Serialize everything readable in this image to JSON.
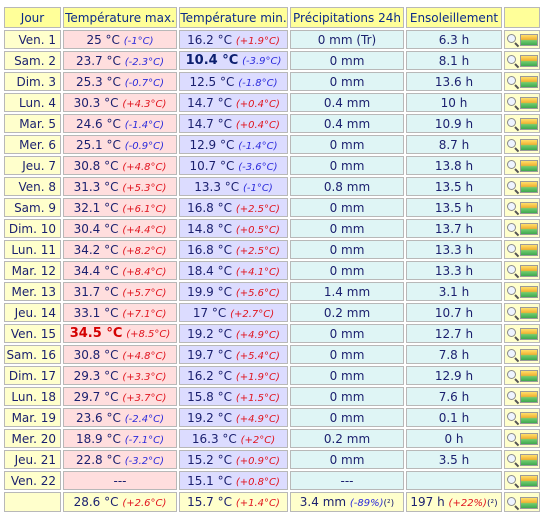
{
  "headers": {
    "jour": "Jour",
    "tmax": "Température max.",
    "tmin": "Température min.",
    "precip": "Précipitations 24h",
    "sun": "Ensoleillement"
  },
  "rows": [
    {
      "day": "Ven. 1",
      "tmax": "25 °C",
      "tmax_anom": "(-1°C)",
      "tmin": "16.2 °C",
      "tmin_anom": "(+1.9°C)",
      "precip": "0 mm (Tr)",
      "sun": "6.3 h"
    },
    {
      "day": "Sam. 2",
      "tmax": "23.7 °C",
      "tmax_anom": "(-2.3°C)",
      "tmin": "10.4 °C",
      "tmin_anom": "(-3.9°C)",
      "precip": "0 mm",
      "sun": "8.1 h"
    },
    {
      "day": "Dim. 3",
      "tmax": "25.3 °C",
      "tmax_anom": "(-0.7°C)",
      "tmin": "12.5 °C",
      "tmin_anom": "(-1.8°C)",
      "precip": "0 mm",
      "sun": "13.6 h"
    },
    {
      "day": "Lun. 4",
      "tmax": "30.3 °C",
      "tmax_anom": "(+4.3°C)",
      "tmin": "14.7 °C",
      "tmin_anom": "(+0.4°C)",
      "precip": "0.4 mm",
      "sun": "10 h"
    },
    {
      "day": "Mar. 5",
      "tmax": "24.6 °C",
      "tmax_anom": "(-1.4°C)",
      "tmin": "14.7 °C",
      "tmin_anom": "(+0.4°C)",
      "precip": "0.4 mm",
      "sun": "10.9 h"
    },
    {
      "day": "Mer. 6",
      "tmax": "25.1 °C",
      "tmax_anom": "(-0.9°C)",
      "tmin": "12.9 °C",
      "tmin_anom": "(-1.4°C)",
      "precip": "0 mm",
      "sun": "8.7 h"
    },
    {
      "day": "Jeu. 7",
      "tmax": "30.8 °C",
      "tmax_anom": "(+4.8°C)",
      "tmin": "10.7 °C",
      "tmin_anom": "(-3.6°C)",
      "precip": "0 mm",
      "sun": "13.8 h"
    },
    {
      "day": "Ven. 8",
      "tmax": "31.3 °C",
      "tmax_anom": "(+5.3°C)",
      "tmin": "13.3 °C",
      "tmin_anom": "(-1°C)",
      "precip": "0.8 mm",
      "sun": "13.5 h"
    },
    {
      "day": "Sam. 9",
      "tmax": "32.1 °C",
      "tmax_anom": "(+6.1°C)",
      "tmin": "16.8 °C",
      "tmin_anom": "(+2.5°C)",
      "precip": "0 mm",
      "sun": "13.5 h"
    },
    {
      "day": "Dim. 10",
      "tmax": "30.4 °C",
      "tmax_anom": "(+4.4°C)",
      "tmin": "14.8 °C",
      "tmin_anom": "(+0.5°C)",
      "precip": "0 mm",
      "sun": "13.7 h"
    },
    {
      "day": "Lun. 11",
      "tmax": "34.2 °C",
      "tmax_anom": "(+8.2°C)",
      "tmin": "16.8 °C",
      "tmin_anom": "(+2.5°C)",
      "precip": "0 mm",
      "sun": "13.3 h"
    },
    {
      "day": "Mar. 12",
      "tmax": "34.4 °C",
      "tmax_anom": "(+8.4°C)",
      "tmin": "18.4 °C",
      "tmin_anom": "(+4.1°C)",
      "precip": "0 mm",
      "sun": "13.3 h"
    },
    {
      "day": "Mer. 13",
      "tmax": "31.7 °C",
      "tmax_anom": "(+5.7°C)",
      "tmin": "19.9 °C",
      "tmin_anom": "(+5.6°C)",
      "precip": "1.4 mm",
      "sun": "3.1 h"
    },
    {
      "day": "Jeu. 14",
      "tmax": "33.1 °C",
      "tmax_anom": "(+7.1°C)",
      "tmin": "17 °C",
      "tmin_anom": "(+2.7°C)",
      "precip": "0.2 mm",
      "sun": "10.7 h"
    },
    {
      "day": "Ven. 15",
      "tmax": "34.5 °C",
      "tmax_anom": "(+8.5°C)",
      "tmin": "19.2 °C",
      "tmin_anom": "(+4.9°C)",
      "precip": "0 mm",
      "sun": "12.7 h"
    },
    {
      "day": "Sam. 16",
      "tmax": "30.8 °C",
      "tmax_anom": "(+4.8°C)",
      "tmin": "19.7 °C",
      "tmin_anom": "(+5.4°C)",
      "precip": "0 mm",
      "sun": "7.8 h"
    },
    {
      "day": "Dim. 17",
      "tmax": "29.3 °C",
      "tmax_anom": "(+3.3°C)",
      "tmin": "16.2 °C",
      "tmin_anom": "(+1.9°C)",
      "precip": "0 mm",
      "sun": "12.9 h"
    },
    {
      "day": "Lun. 18",
      "tmax": "29.7 °C",
      "tmax_anom": "(+3.7°C)",
      "tmin": "15.8 °C",
      "tmin_anom": "(+1.5°C)",
      "precip": "0 mm",
      "sun": "7.6 h"
    },
    {
      "day": "Mar. 19",
      "tmax": "23.6 °C",
      "tmax_anom": "(-2.4°C)",
      "tmin": "19.2 °C",
      "tmin_anom": "(+4.9°C)",
      "precip": "0 mm",
      "sun": "0.1 h"
    },
    {
      "day": "Mer. 20",
      "tmax": "18.9 °C",
      "tmax_anom": "(-7.1°C)",
      "tmin": "16.3 °C",
      "tmin_anom": "(+2°C)",
      "precip": "0.2 mm",
      "sun": "0 h"
    },
    {
      "day": "Jeu. 21",
      "tmax": "22.8 °C",
      "tmax_anom": "(-3.2°C)",
      "tmin": "15.2 °C",
      "tmin_anom": "(+0.9°C)",
      "precip": "0 mm",
      "sun": "3.5 h"
    },
    {
      "day": "Ven. 22",
      "tmax": "---",
      "tmax_anom": "",
      "tmin": "15.1 °C",
      "tmin_anom": "(+0.8°C)",
      "precip": "---",
      "sun": ""
    }
  ],
  "summary": {
    "tmax": "28.6 °C",
    "tmax_anom": "(+2.6°C)",
    "tmin": "15.7 °C",
    "tmin_anom": "(+1.4°C)",
    "precip": "3.4 mm",
    "precip_anom": "(-89%)",
    "precip_note": "(²)",
    "sun": "197 h",
    "sun_anom": "(+22%)",
    "sun_note": "(²)"
  },
  "records": {
    "tmax_row": 14,
    "tmin_row": 1
  },
  "colors": {
    "header_bg": "#ffff99",
    "day_bg": "#ffffcc",
    "tmax_bg": "#ffdede",
    "tmin_bg": "#dcdcff",
    "precip_bg": "#dff5f5",
    "positive": "#e0141e",
    "negative": "#2b2bdb"
  },
  "icons": {
    "row_action": "magnifier-icon",
    "row_chart": "sparkline-chart-icon"
  }
}
